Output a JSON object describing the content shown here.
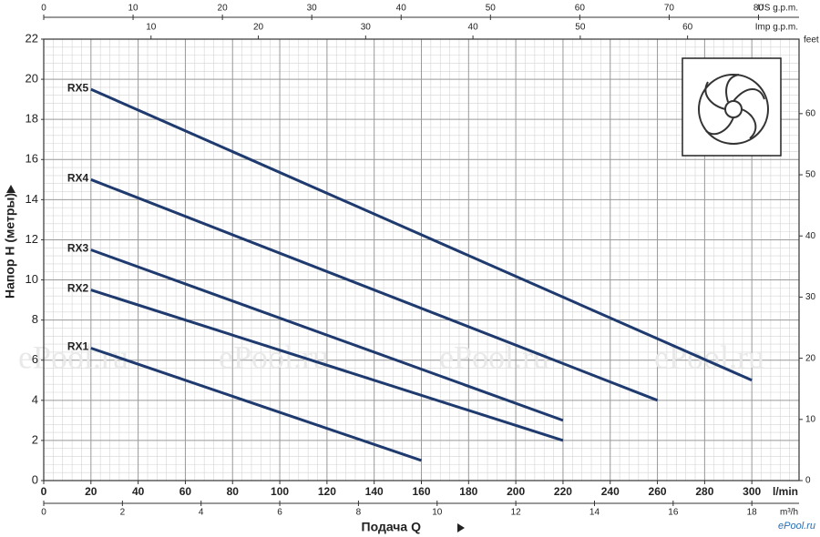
{
  "chart_data": {
    "type": "line",
    "y_label": "Напор H (метры)",
    "x_label": "Подача Q",
    "x_unit": "l/min",
    "xlim": [
      0,
      320
    ],
    "xticks": [
      0,
      20,
      40,
      60,
      80,
      100,
      120,
      140,
      160,
      180,
      200,
      220,
      240,
      260,
      280,
      300
    ],
    "x2_unit": "m³/h",
    "x2lim": [
      0,
      19.2
    ],
    "x2ticks": [
      0,
      2,
      4,
      6,
      8,
      10,
      12,
      14,
      16,
      18
    ],
    "x3_unit": "US g.p.m.",
    "x3lim": [
      0,
      84.54
    ],
    "x3ticks": [
      0,
      10,
      20,
      30,
      40,
      50,
      60,
      70,
      80
    ],
    "x4_unit": "Imp g.p.m.",
    "x4lim": [
      0,
      70.39
    ],
    "x4ticks": [
      10,
      20,
      30,
      40,
      50,
      60
    ],
    "ylim": [
      0,
      22
    ],
    "yticks": [
      0,
      2,
      4,
      6,
      8,
      10,
      12,
      14,
      16,
      18,
      20,
      22
    ],
    "y2_unit": "feet",
    "y2lim": [
      0,
      72.18
    ],
    "y2ticks": [
      0,
      10,
      20,
      30,
      40,
      50,
      60
    ],
    "grid": true,
    "watermark": "ePool.ru",
    "series": [
      {
        "name": "RX5",
        "color": "#1e3a6e",
        "x": [
          20,
          300
        ],
        "values": [
          19.5,
          5
        ]
      },
      {
        "name": "RX4",
        "color": "#1e3a6e",
        "x": [
          20,
          260
        ],
        "values": [
          15,
          4
        ]
      },
      {
        "name": "RX3",
        "color": "#1e3a6e",
        "x": [
          20,
          220
        ],
        "values": [
          11.5,
          3
        ]
      },
      {
        "name": "RX2",
        "color": "#1e3a6e",
        "x": [
          20,
          220
        ],
        "values": [
          9.5,
          2
        ]
      },
      {
        "name": "RX1",
        "color": "#1e3a6e",
        "x": [
          20,
          160
        ],
        "values": [
          6.6,
          1
        ]
      }
    ]
  }
}
